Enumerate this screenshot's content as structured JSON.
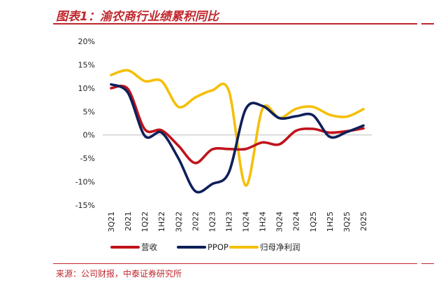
{
  "header": {
    "title": "图表1：渝农商行业绩累积同比"
  },
  "footer": {
    "source": "来源：公司财报，中泰证券研究所"
  },
  "chart_data": {
    "type": "line",
    "title": "图表1：渝农商行业绩累积同比",
    "xlabel": "",
    "ylabel": "",
    "categories": [
      "3Q21",
      "2021",
      "1Q22",
      "1H22",
      "3Q22",
      "2022",
      "1Q23",
      "1H23",
      "1Q24",
      "1H24",
      "3Q24",
      "2024",
      "1Q25",
      "1H25",
      "3Q25",
      "2025"
    ],
    "ylim": [
      -15,
      20
    ],
    "yticks": [
      -15,
      -10,
      -5,
      0,
      5,
      10,
      15,
      20
    ],
    "ytick_labels": [
      "-15%",
      "-10%",
      "-5%",
      "0%",
      "5%",
      "10%",
      "15%",
      "20%"
    ],
    "grid": false,
    "legend_position": "bottom",
    "colors": {
      "营收": "#c0131b",
      "PPOP": "#0f1f5a",
      "归母净利润": "#f5bf08"
    },
    "series": [
      {
        "name": "营收",
        "values": [
          10.0,
          9.8,
          1.2,
          1.0,
          -2.3,
          -6.0,
          -3.1,
          -3.0,
          -3.0,
          -1.6,
          -2.0,
          0.9,
          1.3,
          0.5,
          0.8,
          1.4
        ]
      },
      {
        "name": "PPOP",
        "values": [
          10.8,
          9.0,
          -0.2,
          0.5,
          -5.0,
          -12.0,
          -10.5,
          -8.0,
          5.5,
          6.2,
          3.6,
          4.0,
          4.2,
          -0.4,
          0.6,
          2.0
        ]
      },
      {
        "name": "归母净利润",
        "values": [
          12.8,
          13.8,
          11.5,
          11.5,
          6.0,
          8.0,
          9.5,
          9.4,
          -10.8,
          5.6,
          3.6,
          5.6,
          6.0,
          4.3,
          3.9,
          5.5
        ]
      }
    ]
  }
}
